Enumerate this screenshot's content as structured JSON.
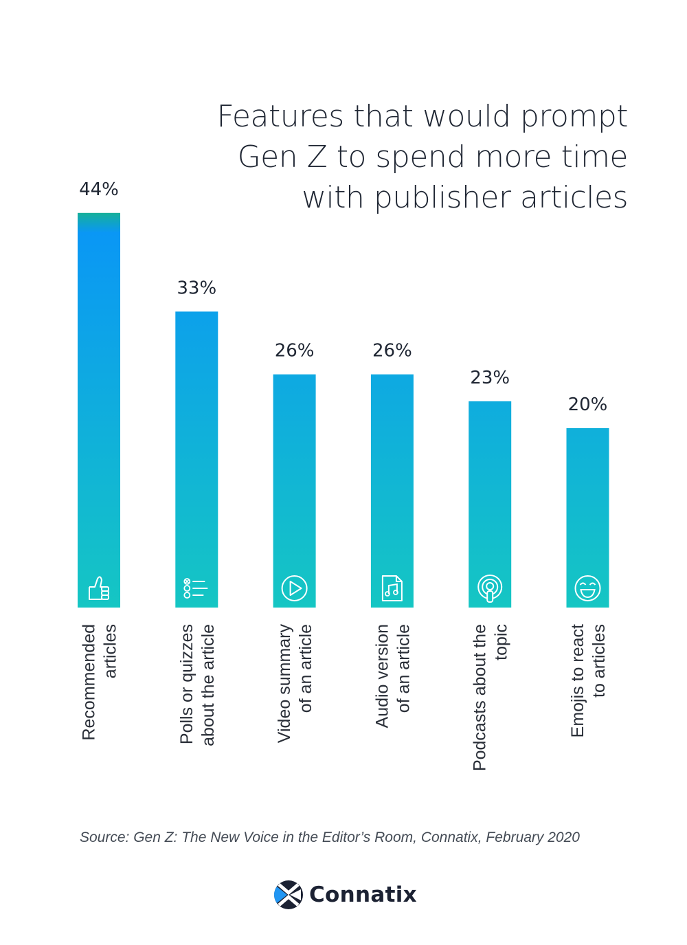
{
  "chart_data": {
    "type": "bar",
    "title": "Features that would prompt Gen Z to spend more time with publisher articles",
    "title_lines": [
      "Features that would prompt",
      "Gen Z to spend more time",
      "with publisher articles"
    ],
    "xlabel": "",
    "ylabel": "",
    "ylim": [
      0,
      44
    ],
    "grid": false,
    "legend": "none",
    "categories": [
      "Recommended articles",
      "Polls or quizzes about the article",
      "Video summary of an article",
      "Audio version of an article",
      "Podcasts about the topic",
      "Emojis to react to articles"
    ],
    "category_lines": [
      [
        "Recommended",
        "articles"
      ],
      [
        "Polls or quizzes",
        "about the article"
      ],
      [
        "Video summary",
        "of an article"
      ],
      [
        "Audio version",
        "of an article"
      ],
      [
        "Podcasts about the",
        "topic"
      ],
      [
        "Emojis to react",
        "to articles"
      ]
    ],
    "values": [
      44,
      33,
      26,
      26,
      23,
      20
    ],
    "data_labels": [
      "44%",
      "33%",
      "26%",
      "26%",
      "23%",
      "20%"
    ],
    "icons": [
      "thumbs-up-icon",
      "checklist-icon",
      "play-icon",
      "music-file-icon",
      "podcast-icon",
      "smile-emoji-icon"
    ],
    "colors": {
      "gradient_top": "#0a97f5",
      "gradient_bottom": "#15c6c3",
      "accent_top": "#16b09a",
      "label": "#1f2633"
    },
    "source": "Source: Gen Z: The New Voice in the Editor’s Room, Connatix, February 2020"
  },
  "brand": {
    "name": "Connatix",
    "colors": {
      "dark": "#1c2233",
      "blue": "#2196f3"
    }
  }
}
